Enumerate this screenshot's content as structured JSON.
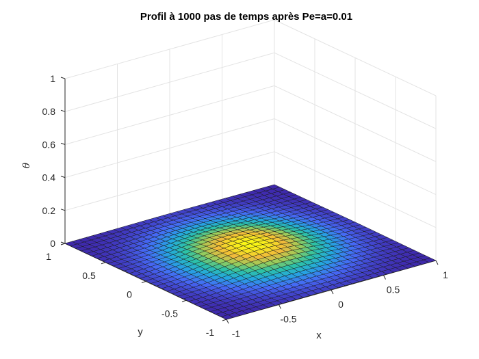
{
  "chart_data": {
    "type": "surface",
    "title": "Profil à  1000 pas de temps après Pe=a=0.01",
    "xlabel": "x",
    "ylabel": "y",
    "zlabel": "θ",
    "xlim": [
      -1,
      1
    ],
    "ylim": [
      -1,
      1
    ],
    "zlim": [
      0,
      1
    ],
    "xticks": [
      "-1",
      "-0.5",
      "0",
      "0.5",
      "1"
    ],
    "yticks": [
      "-1",
      "-0.5",
      "0",
      "0.5",
      "1"
    ],
    "zticks": [
      "0",
      "0.2",
      "0.4",
      "0.6",
      "0.8",
      "1"
    ],
    "grid": true,
    "colormap": "parula",
    "colormap_stops": [
      "#3e26a8",
      "#4669f6",
      "#24a7e0",
      "#2dc2a6",
      "#96cc5d",
      "#f1bb3b",
      "#f9f815"
    ],
    "mesh_n": 31,
    "surface": {
      "description_of_shape": "radially symmetric bump centered at origin",
      "peak_value": 0.05,
      "edge_value": 0.0
    }
  }
}
